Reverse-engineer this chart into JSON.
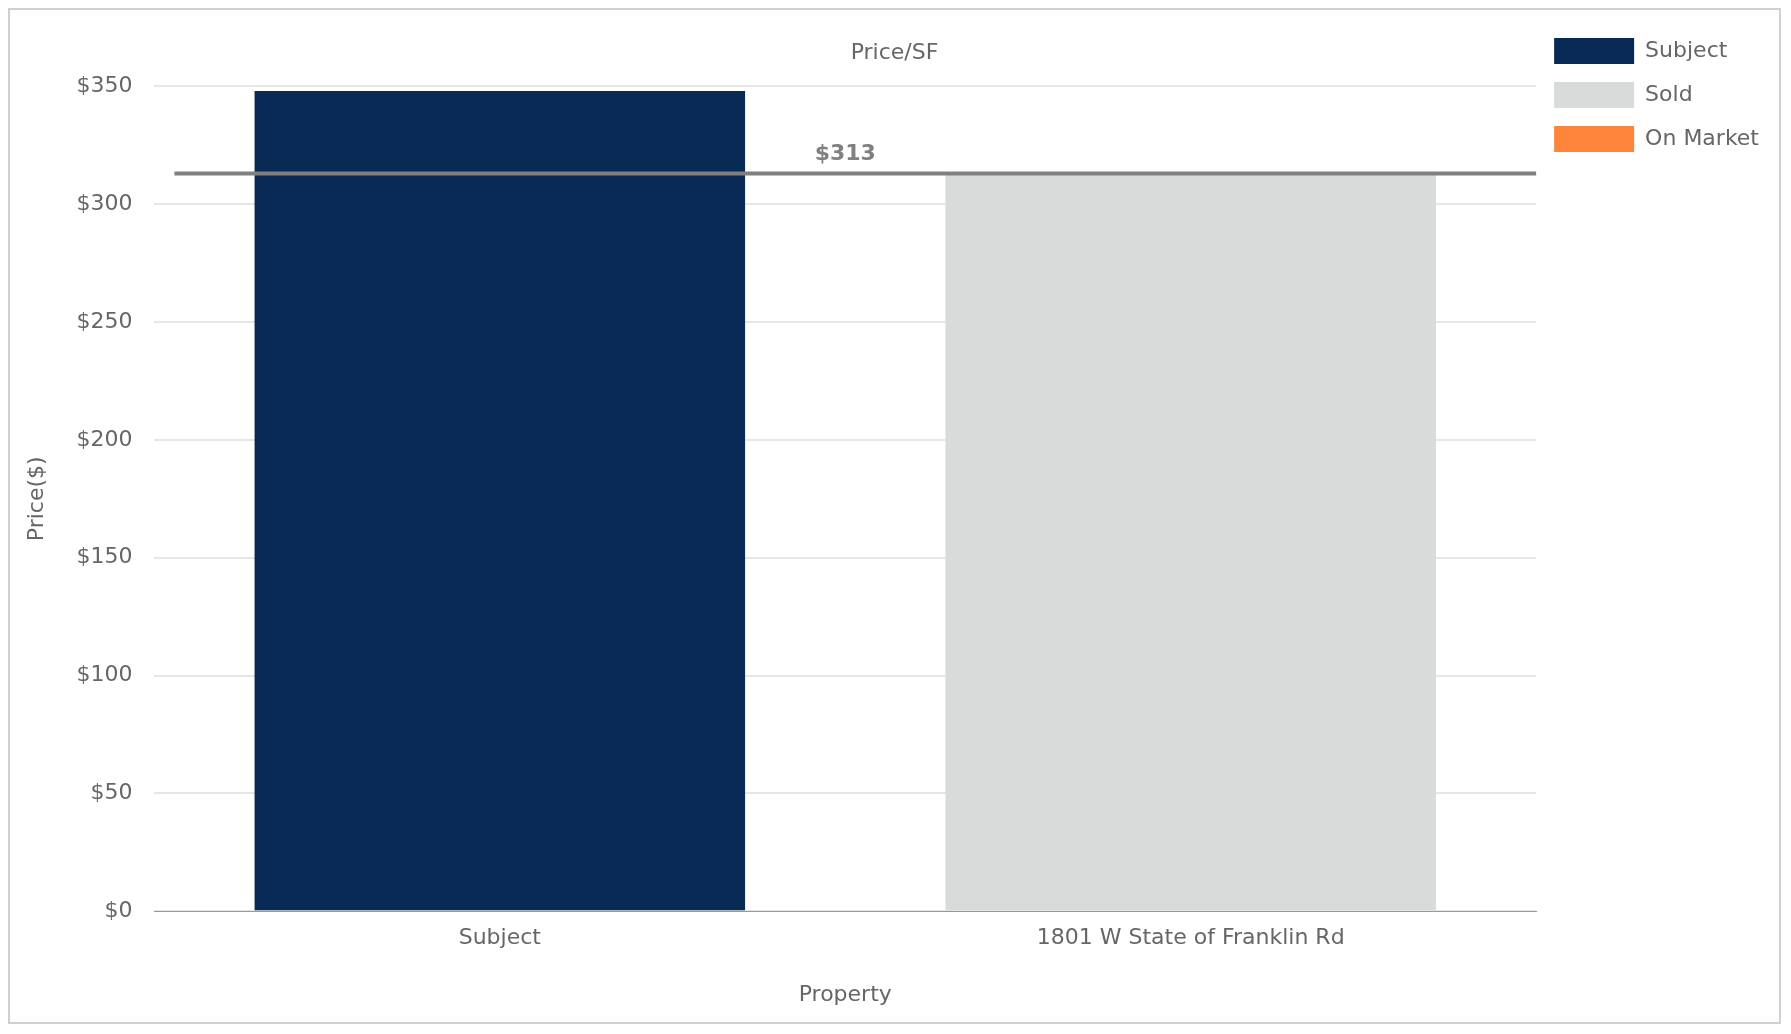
{
  "chart_data": {
    "type": "bar",
    "title": "Price/SF",
    "xlabel": "Property",
    "ylabel": "Price($)",
    "categories": [
      "Subject",
      "1801 W State of Franklin Rd"
    ],
    "series": [
      {
        "name": "Subject",
        "color": "#082a54",
        "values": [
          348,
          null
        ]
      },
      {
        "name": "Sold",
        "color": "#d8dbda",
        "values": [
          null,
          313
        ]
      },
      {
        "name": "On Market",
        "color": "#fd8439",
        "values": [
          null,
          null
        ]
      }
    ],
    "ylim": [
      0,
      350
    ],
    "yticks": [
      {
        "value": 0,
        "label": "$0"
      },
      {
        "value": 50,
        "label": "$50"
      },
      {
        "value": 100,
        "label": "$100"
      },
      {
        "value": 150,
        "label": "$150"
      },
      {
        "value": 200,
        "label": "$200"
      },
      {
        "value": 250,
        "label": "$250"
      },
      {
        "value": 300,
        "label": "$300"
      },
      {
        "value": 350,
        "label": "$350"
      }
    ],
    "ref_lines": [
      {
        "axis": "y",
        "value": 313,
        "label": "$313",
        "color": "#808080"
      }
    ],
    "grid": "y",
    "legend": "top right"
  }
}
